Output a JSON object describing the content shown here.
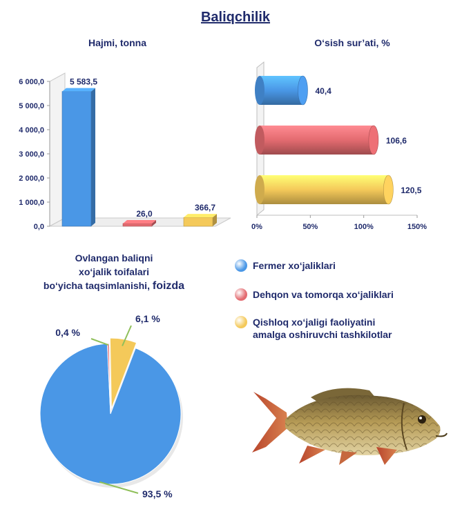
{
  "page": {
    "title": "Baliqchilik"
  },
  "colors": {
    "blue": "#4a97e6",
    "red": "#e36b70",
    "yellow": "#f4c95a"
  },
  "chart_data": [
    {
      "type": "bar",
      "title": "Hajmi, tonna",
      "categories": [
        "Fermer xo‘jaliklari",
        "Dehqon va tomorqa xo‘jaliklari",
        "Qishloq xo‘jaligi faoliyatini amalga oshiruvchi tashkilotlar"
      ],
      "values": [
        5583.5,
        26.0,
        366.7
      ],
      "value_labels": [
        "5 583,5",
        "26,0",
        "366,7"
      ],
      "colors": [
        "#4a97e6",
        "#e36b70",
        "#f4c95a"
      ],
      "ylim": [
        0,
        6000
      ],
      "yticks": [
        0,
        1000,
        2000,
        3000,
        4000,
        5000,
        6000
      ],
      "ytick_labels": [
        "0,0",
        "1 000,0",
        "2 000,0",
        "3 000,0",
        "4 000,0",
        "5 000,0",
        "6 000,0"
      ],
      "grid": false
    },
    {
      "type": "bar",
      "orientation": "horizontal",
      "title": "O‘sish sur’ati, %",
      "categories": [
        "Fermer xo‘jaliklari",
        "Dehqon va tomorqa xo‘jaliklari",
        "Qishloq xo‘jaligi faoliyatini amalga oshiruvchi tashkilotlar"
      ],
      "values": [
        40.4,
        106.6,
        120.5
      ],
      "value_labels": [
        "40,4",
        "106,6",
        "120,5"
      ],
      "colors": [
        "#4a97e6",
        "#e36b70",
        "#f4c95a"
      ],
      "xlim": [
        0,
        150
      ],
      "xticks": [
        0,
        50,
        100,
        150
      ],
      "xtick_labels": [
        "0%",
        "50%",
        "100%",
        "150%"
      ],
      "grid": false
    },
    {
      "type": "pie",
      "title_lines": [
        "Ovlangan baliqni",
        "xo‘jalik toifalari"
      ],
      "title_last_line": "bo‘yicha taqsimlanishi, ",
      "title_emphasis": "foizda",
      "categories": [
        "Fermer xo‘jaliklari",
        "Dehqon va tomorqa xo‘jaliklari",
        "Qishloq xo‘jaligi faoliyatini amalga oshiruvchi tashkilotlar"
      ],
      "values": [
        93.5,
        0.4,
        6.1
      ],
      "value_labels": [
        "93,5 %",
        "0,4 %",
        "6,1 %"
      ],
      "colors": [
        "#4a97e6",
        "#e36b70",
        "#f4c95a"
      ]
    }
  ],
  "legend": {
    "items": [
      {
        "label": "Fermer xo‘jaliklari",
        "color": "#4a97e6"
      },
      {
        "label": "Dehqon va tomorqa xo‘jaliklari",
        "color": "#e36b70"
      },
      {
        "label": "Qishloq xo‘jaligi faoliyatini\namalga oshiruvchi tashkilotlar",
        "color": "#f4c95a"
      }
    ]
  }
}
